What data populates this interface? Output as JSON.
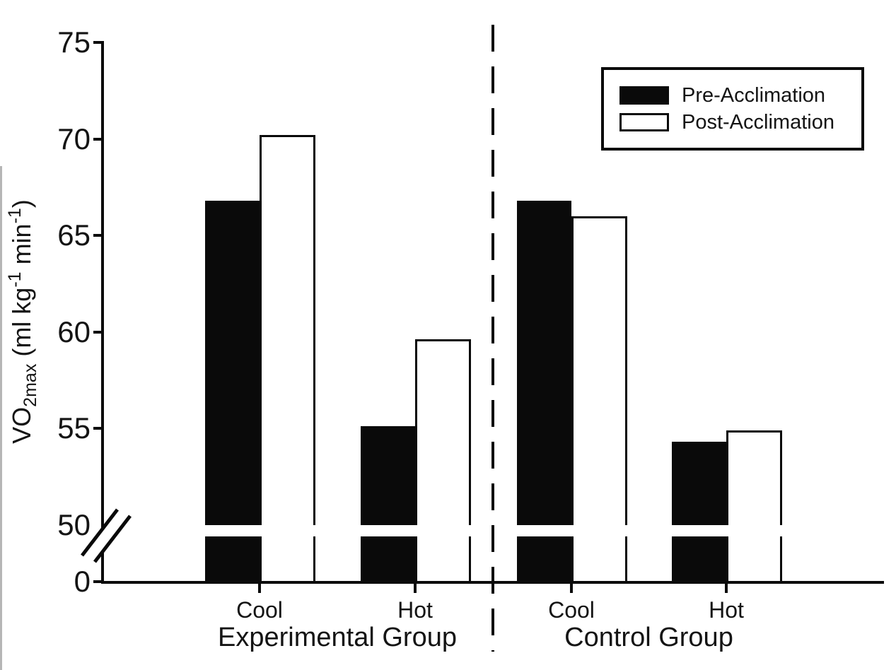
{
  "chart_data": {
    "type": "bar",
    "title": "",
    "ylabel": "VO2max (ml kg-1 min-1)",
    "xlabel": "",
    "yticks": [
      75,
      70,
      65,
      60,
      55,
      50,
      0
    ],
    "axis_break": "y-axis broken between 0 and 50 (break marks on axis and through bars)",
    "plotted_range": [
      50,
      75
    ],
    "grid": false,
    "legend_position": "top-right",
    "series_names": [
      "Pre-Acclimation",
      "Post-Acclimation"
    ],
    "groups": [
      {
        "label": "Experimental Group",
        "categories": [
          {
            "label": "Cool",
            "values": {
              "Pre-Acclimation": 66.8,
              "Post-Acclimation": 70.2
            }
          },
          {
            "label": "Hot",
            "values": {
              "Pre-Acclimation": 55.1,
              "Post-Acclimation": 59.6
            }
          }
        ]
      },
      {
        "label": "Control Group",
        "categories": [
          {
            "label": "Cool",
            "values": {
              "Pre-Acclimation": 66.8,
              "Post-Acclimation": 66.0
            }
          },
          {
            "label": "Hot",
            "values": {
              "Pre-Acclimation": 54.3,
              "Post-Acclimation": 54.9
            }
          }
        ]
      }
    ]
  },
  "ylabel_parts": {
    "main": "VO",
    "sub": "2max",
    "unit_open": " (ml kg",
    "sup1": "-1",
    "unit_mid": " min",
    "sup2": "-1",
    "unit_close": ")"
  },
  "legend": {
    "items": [
      {
        "label": "Pre-Acclimation",
        "fill": "#000000"
      },
      {
        "label": "Post-Acclimation",
        "fill": "#ffffff"
      }
    ]
  },
  "colors": {
    "bar_fill": "#0a0a0a",
    "bar_outline": "#0a0a0a",
    "background": "#ffffff"
  }
}
